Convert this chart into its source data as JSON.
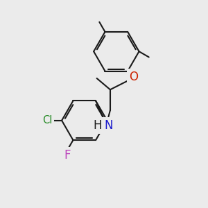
{
  "bg_color": "#ebebeb",
  "bond_color": "#1a1a1a",
  "bond_width": 1.5,
  "atoms": {
    "O": {
      "color": "#cc2200",
      "fontsize": 12
    },
    "N": {
      "color": "#1a1acc",
      "fontsize": 12
    },
    "Cl": {
      "color": "#228822",
      "fontsize": 10.5
    },
    "F": {
      "color": "#bb44bb",
      "fontsize": 12
    },
    "H": {
      "color": "#1a1a1a",
      "fontsize": 12
    }
  },
  "figsize": [
    3.0,
    3.0
  ],
  "dpi": 100
}
